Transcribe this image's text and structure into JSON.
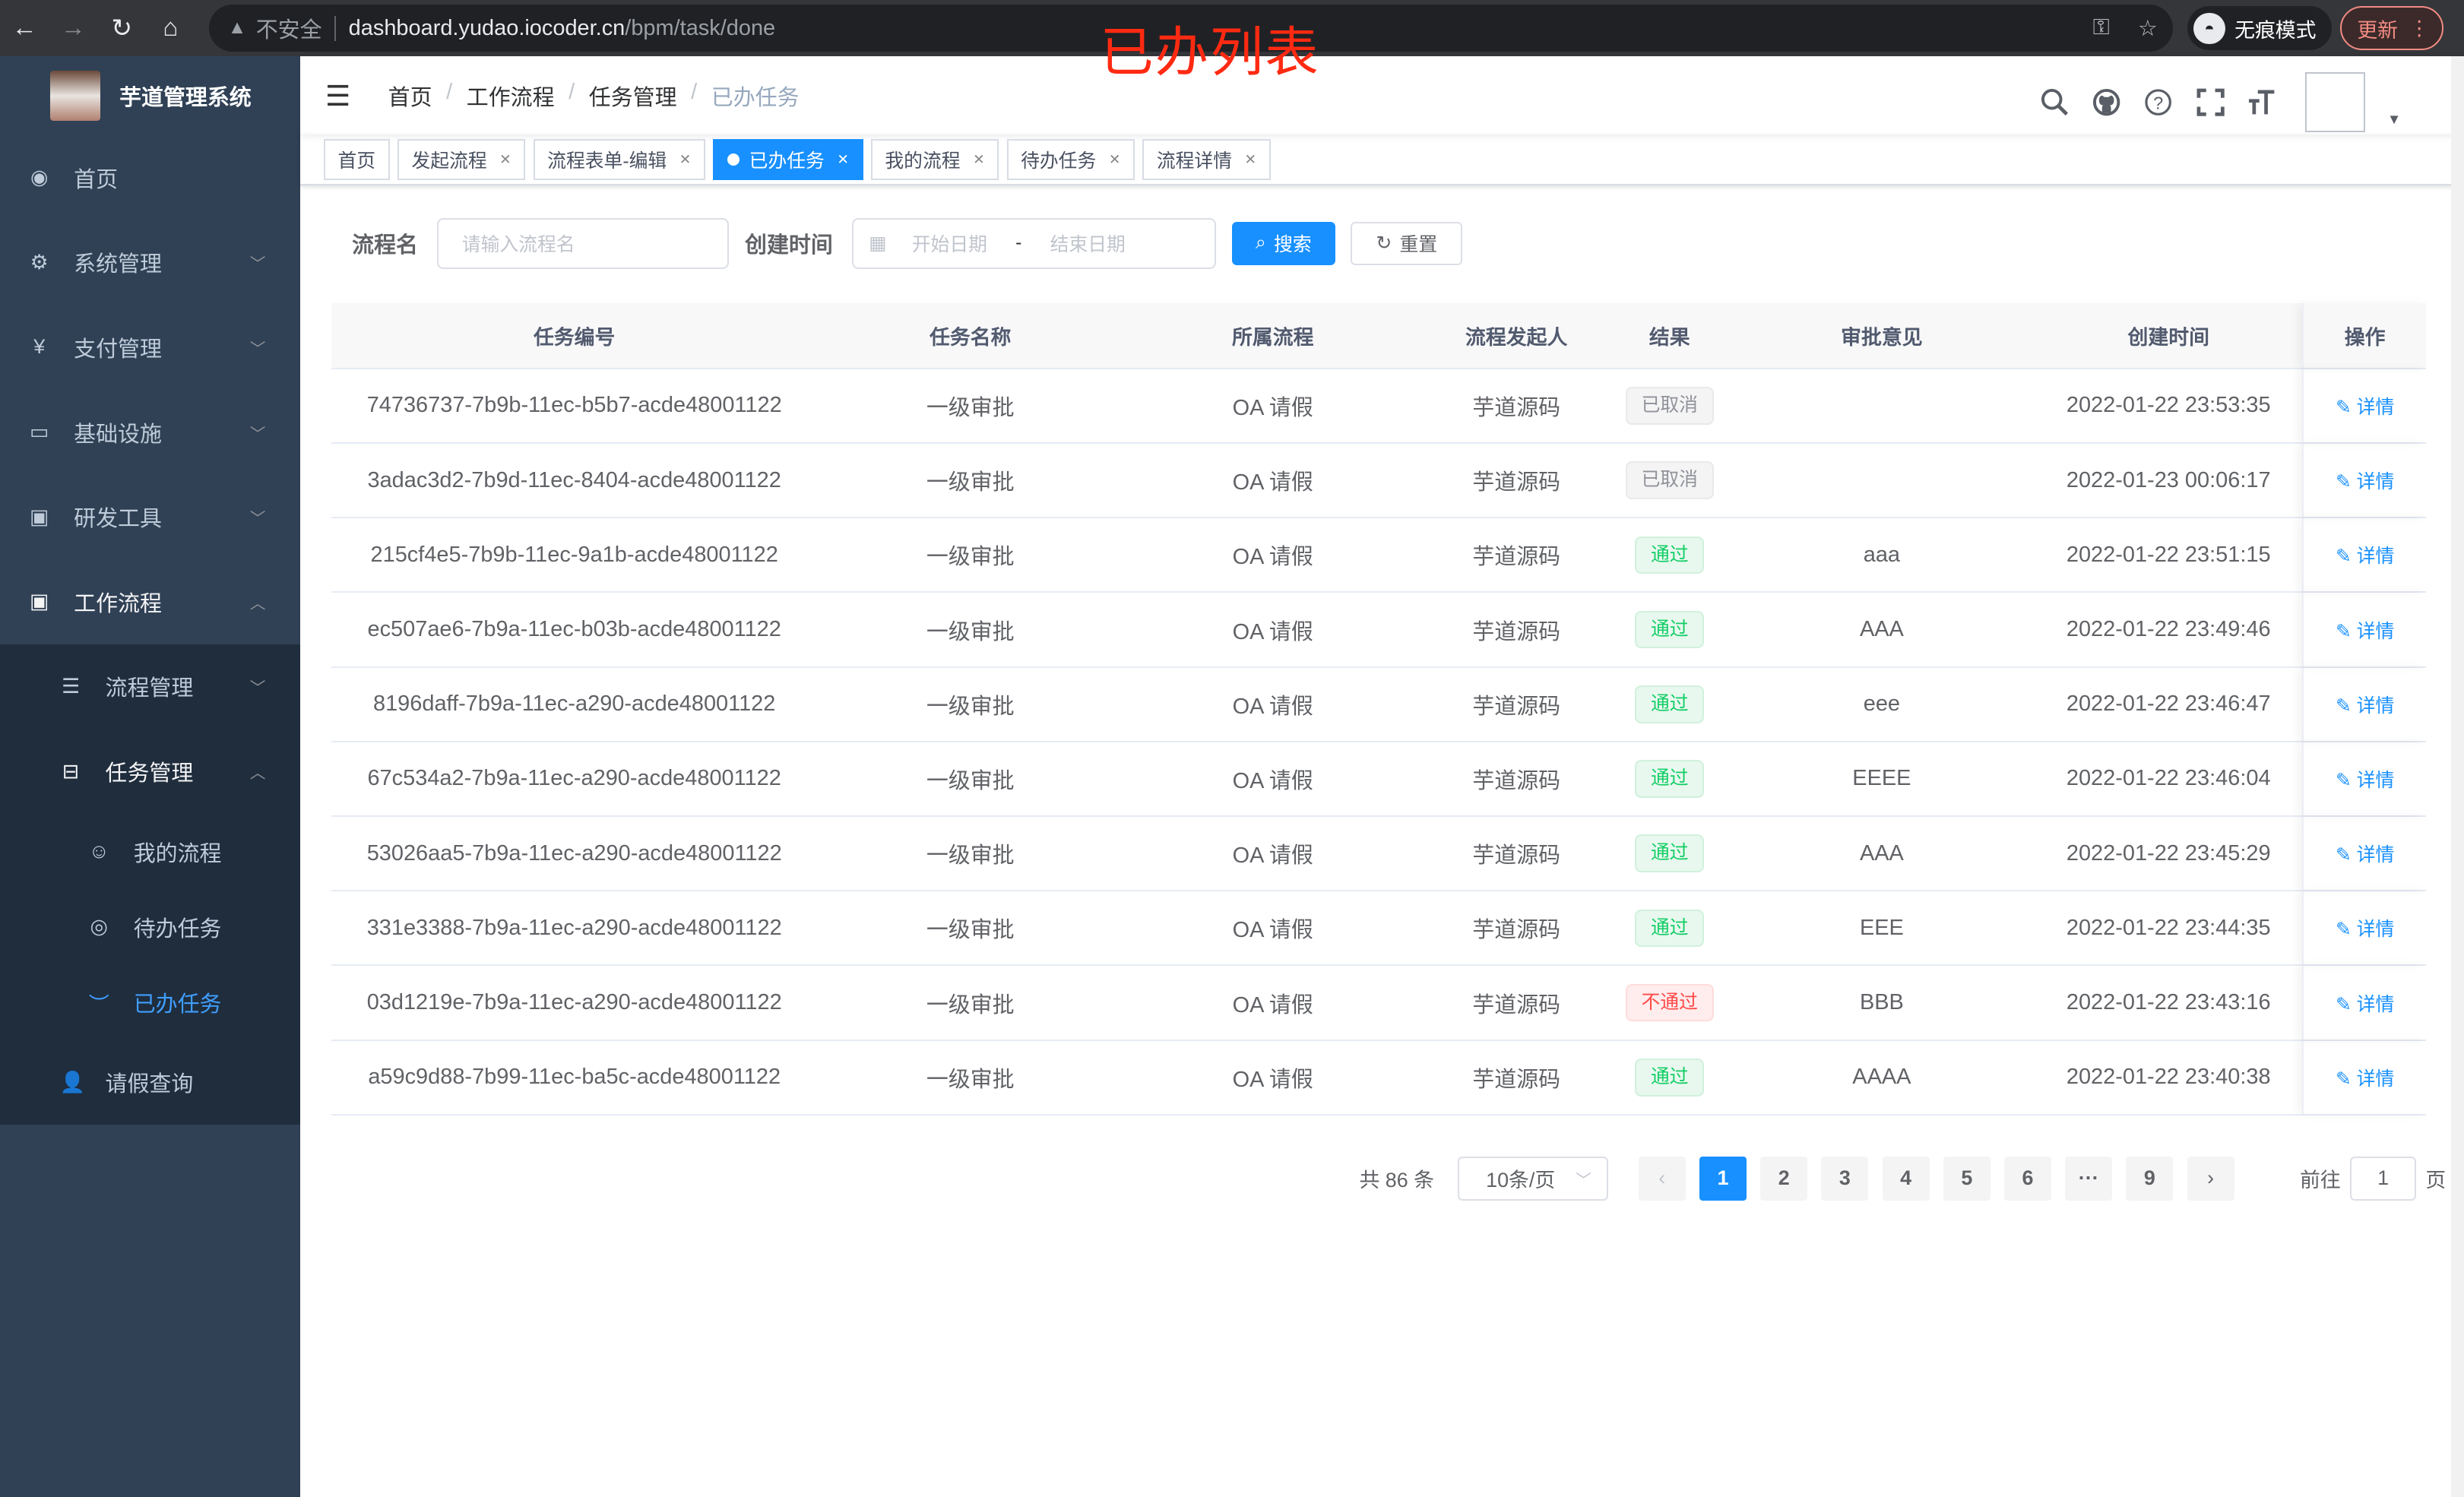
{
  "overlay_title": "已办列表",
  "browser": {
    "insecure": "不安全",
    "url_host": "dashboard.yudao.iocoder.cn",
    "url_path": "/bpm/task/done",
    "incognito": "无痕模式",
    "update": "更新"
  },
  "app": {
    "title": "芋道管理系统"
  },
  "sidebar": {
    "items": [
      {
        "label": "首页",
        "icon": "dashboard-icon"
      },
      {
        "label": "系统管理",
        "icon": "gear-icon"
      },
      {
        "label": "支付管理",
        "icon": "yen-icon"
      },
      {
        "label": "基础设施",
        "icon": "monitor-icon"
      },
      {
        "label": "研发工具",
        "icon": "toolbox-icon"
      },
      {
        "label": "工作流程",
        "icon": "toolbox-icon"
      }
    ],
    "workflow_children": [
      "流程管理",
      "任务管理",
      "请假查询"
    ],
    "task_children": [
      "我的流程",
      "待办任务",
      "已办任务"
    ]
  },
  "breadcrumb": [
    "首页",
    "工作流程",
    "任务管理",
    "已办任务"
  ],
  "tags": [
    {
      "label": "首页"
    },
    {
      "label": "发起流程"
    },
    {
      "label": "流程表单-编辑"
    },
    {
      "label": "已办任务",
      "active": true
    },
    {
      "label": "我的流程"
    },
    {
      "label": "待办任务"
    },
    {
      "label": "流程详情"
    }
  ],
  "search": {
    "name_label": "流程名",
    "name_placeholder": "请输入流程名",
    "time_label": "创建时间",
    "start_placeholder": "开始日期",
    "range_sep": "-",
    "end_placeholder": "结束日期",
    "search_btn": "搜索",
    "reset_btn": "重置"
  },
  "table": {
    "headers": [
      "任务编号",
      "任务名称",
      "所属流程",
      "流程发起人",
      "结果",
      "审批意见",
      "创建时间",
      "操作"
    ],
    "action_label": "详情",
    "rows": [
      [
        "74736737-7b9b-11ec-b5b7-acde48001122",
        "一级审批",
        "OA 请假",
        "芋道源码",
        "已取消",
        "",
        "2022-01-22 23:53:35"
      ],
      [
        "3adac3d2-7b9d-11ec-8404-acde48001122",
        "一级审批",
        "OA 请假",
        "芋道源码",
        "已取消",
        "",
        "2022-01-23 00:06:17"
      ],
      [
        "215cf4e5-7b9b-11ec-9a1b-acde48001122",
        "一级审批",
        "OA 请假",
        "芋道源码",
        "通过",
        "aaa",
        "2022-01-22 23:51:15"
      ],
      [
        "ec507ae6-7b9a-11ec-b03b-acde48001122",
        "一级审批",
        "OA 请假",
        "芋道源码",
        "通过",
        "AAA",
        "2022-01-22 23:49:46"
      ],
      [
        "8196daff-7b9a-11ec-a290-acde48001122",
        "一级审批",
        "OA 请假",
        "芋道源码",
        "通过",
        "eee",
        "2022-01-22 23:46:47"
      ],
      [
        "67c534a2-7b9a-11ec-a290-acde48001122",
        "一级审批",
        "OA 请假",
        "芋道源码",
        "通过",
        "EEEE",
        "2022-01-22 23:46:04"
      ],
      [
        "53026aa5-7b9a-11ec-a290-acde48001122",
        "一级审批",
        "OA 请假",
        "芋道源码",
        "通过",
        "AAA",
        "2022-01-22 23:45:29"
      ],
      [
        "331e3388-7b9a-11ec-a290-acde48001122",
        "一级审批",
        "OA 请假",
        "芋道源码",
        "通过",
        "EEE",
        "2022-01-22 23:44:35"
      ],
      [
        "03d1219e-7b9a-11ec-a290-acde48001122",
        "一级审批",
        "OA 请假",
        "芋道源码",
        "不通过",
        "BBB",
        "2022-01-22 23:43:16"
      ],
      [
        "a59c9d88-7b99-11ec-ba5c-acde48001122",
        "一级审批",
        "OA 请假",
        "芋道源码",
        "通过",
        "AAAA",
        "2022-01-22 23:40:38"
      ]
    ]
  },
  "status_colors": {
    "已取消": [
      "#f4f4f5",
      "#e9e9eb",
      "#909399"
    ],
    "通过": [
      "#e8f8ee",
      "#d1f1dc",
      "#13ce66"
    ],
    "不通过": [
      "#ffeded",
      "#ffdbdb",
      "#ff4949"
    ]
  },
  "pagination": {
    "total": "共 86 条",
    "page_size": "10条/页",
    "pages": [
      "1",
      "2",
      "3",
      "4",
      "5",
      "6",
      "···",
      "9"
    ],
    "current": "1",
    "goto_label": "前往",
    "goto_value": "1",
    "page_unit": "页"
  },
  "colors": {
    "primary": "#1890ff",
    "sidebar": "#304156"
  }
}
